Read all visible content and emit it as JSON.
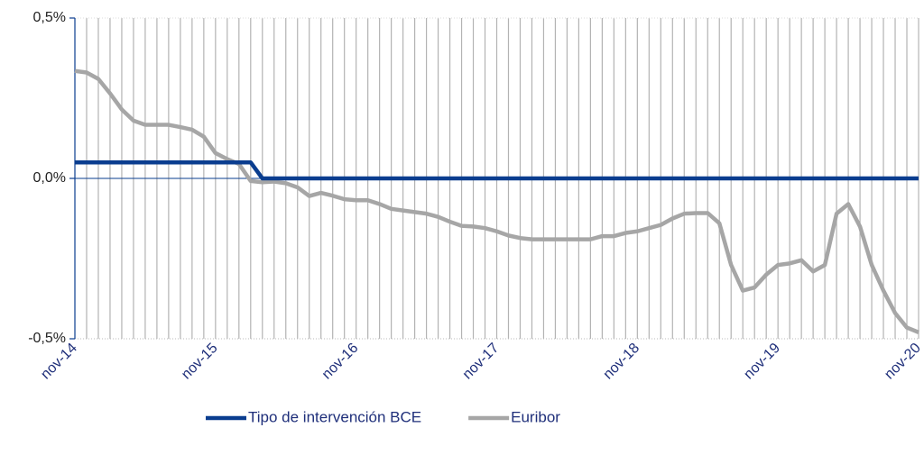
{
  "chart_data": {
    "type": "line",
    "categories": [
      "nov-14",
      null,
      null,
      null,
      null,
      null,
      null,
      null,
      null,
      null,
      null,
      null,
      "nov-15",
      null,
      null,
      null,
      null,
      null,
      null,
      null,
      null,
      null,
      null,
      null,
      "nov-16",
      null,
      null,
      null,
      null,
      null,
      null,
      null,
      null,
      null,
      null,
      null,
      "nov-17",
      null,
      null,
      null,
      null,
      null,
      null,
      null,
      null,
      null,
      null,
      null,
      "nov-18",
      null,
      null,
      null,
      null,
      null,
      null,
      null,
      null,
      null,
      null,
      null,
      "nov-19",
      null,
      null,
      null,
      null,
      null,
      null,
      null,
      null,
      null,
      null,
      null,
      "nov-20"
    ],
    "series": [
      {
        "name": "Tipo de intervención BCE",
        "color": "#0a3d8f",
        "values": [
          0.05,
          0.05,
          0.05,
          0.05,
          0.05,
          0.05,
          0.05,
          0.05,
          0.05,
          0.05,
          0.05,
          0.05,
          0.05,
          0.05,
          0.05,
          0.05,
          0,
          0,
          0,
          0,
          0,
          0,
          0,
          0,
          0,
          0,
          0,
          0,
          0,
          0,
          0,
          0,
          0,
          0,
          0,
          0,
          0,
          0,
          0,
          0,
          0,
          0,
          0,
          0,
          0,
          0,
          0,
          0,
          0,
          0,
          0,
          0,
          0,
          0,
          0,
          0,
          0,
          0,
          0,
          0,
          0,
          0,
          0,
          0,
          0,
          0,
          0,
          0,
          0,
          0,
          0,
          0,
          0
        ]
      },
      {
        "name": "Euribor",
        "color": "#a6a6a6",
        "values": [
          0.335,
          0.33,
          0.31,
          0.265,
          0.215,
          0.18,
          0.167,
          0.167,
          0.167,
          0.16,
          0.152,
          0.13,
          0.079,
          0.06,
          0.045,
          -0.008,
          -0.012,
          -0.01,
          -0.015,
          -0.028,
          -0.055,
          -0.045,
          -0.054,
          -0.065,
          -0.068,
          -0.068,
          -0.08,
          -0.095,
          -0.1,
          -0.105,
          -0.11,
          -0.12,
          -0.135,
          -0.148,
          -0.15,
          -0.155,
          -0.165,
          -0.178,
          -0.186,
          -0.19,
          -0.19,
          -0.19,
          -0.19,
          -0.19,
          -0.19,
          -0.18,
          -0.18,
          -0.17,
          -0.165,
          -0.155,
          -0.145,
          -0.125,
          -0.11,
          -0.108,
          -0.108,
          -0.14,
          -0.27,
          -0.35,
          -0.34,
          -0.3,
          -0.27,
          -0.265,
          -0.255,
          -0.29,
          -0.27,
          -0.11,
          -0.08,
          -0.15,
          -0.27,
          -0.35,
          -0.42,
          -0.465,
          -0.48
        ]
      }
    ],
    "ylim": [
      -0.5,
      0.5
    ],
    "yticks": [
      {
        "value": -0.5,
        "label": "-0,5%"
      },
      {
        "value": 0,
        "label": "0,0%"
      },
      {
        "value": 0.5,
        "label": "0,5%"
      }
    ],
    "grid": true,
    "legend": "bottom"
  }
}
